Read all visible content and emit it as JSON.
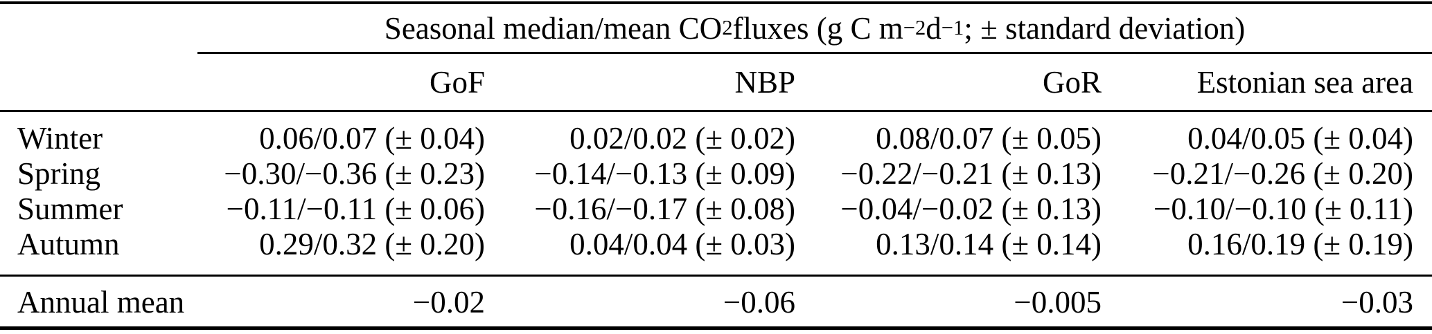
{
  "colors": {
    "background": "#ffffff",
    "text": "#000000",
    "rule": "#000000"
  },
  "table": {
    "span_header": {
      "segments": [
        {
          "text": "Seasonal median/mean CO"
        },
        {
          "text": "2",
          "style": "sub"
        },
        {
          "text": " fluxes (g C m",
          "style": null
        },
        {
          "text": "−2",
          "style": "sup"
        },
        {
          "text": " d",
          "style": null
        },
        {
          "text": "−1",
          "style": "sup"
        },
        {
          "text": "; ± standard deviation)",
          "style": null
        }
      ],
      "plain_text": "Seasonal median/mean CO2 fluxes (g C m−2 d−1; ± standard deviation)"
    },
    "columns": [
      "",
      "GoF",
      "NBP",
      "GoR",
      "Estonian sea area"
    ],
    "rows": [
      {
        "label": "Winter",
        "gof": "0.06/0.07 (± 0.04)",
        "nbp": "0.02/0.02 (± 0.02)",
        "gor": "0.08/0.07 (± 0.05)",
        "estonian": "0.04/0.05 (± 0.04)"
      },
      {
        "label": "Spring",
        "gof": "−0.30/−0.36 (± 0.23)",
        "nbp": "−0.14/−0.13 (± 0.09)",
        "gor": "−0.22/−0.21 (± 0.13)",
        "estonian": "−0.21/−0.26 (± 0.20)"
      },
      {
        "label": "Summer",
        "gof": "−0.11/−0.11 (± 0.06)",
        "nbp": "−0.16/−0.17 (± 0.08)",
        "gor": "−0.04/−0.02 (± 0.13)",
        "estonian": "−0.10/−0.10 (± 0.11)"
      },
      {
        "label": "Autumn",
        "gof": "0.29/0.32 (± 0.20)",
        "nbp": "0.04/0.04 (± 0.03)",
        "gor": "0.13/0.14 (± 0.14)",
        "estonian": "0.16/0.19 (± 0.19)"
      }
    ],
    "annual": {
      "label": "Annual mean",
      "gof": "−0.02",
      "nbp": "−0.06",
      "gor": "−0.005",
      "estonian": "−0.03"
    }
  }
}
